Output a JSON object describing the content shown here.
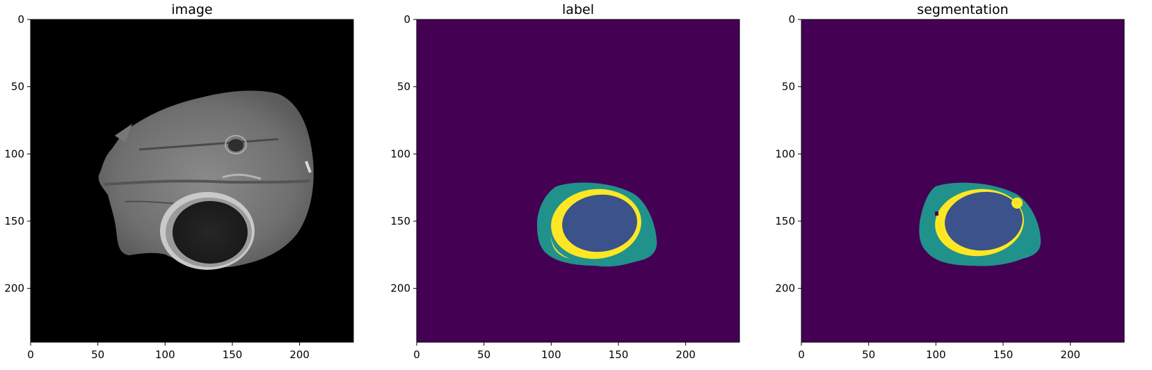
{
  "chart_data": [
    {
      "type": "heatmap",
      "title": "image",
      "xlim": [
        0,
        240
      ],
      "ylim": [
        240,
        0
      ],
      "xticks": [
        0,
        50,
        100,
        150,
        200
      ],
      "yticks": [
        0,
        50,
        100,
        150,
        200
      ],
      "colormap": "gray",
      "content": "axial brain MRI slice with ring-enhancing lesion"
    },
    {
      "type": "heatmap",
      "title": "label",
      "xlim": [
        0,
        240
      ],
      "ylim": [
        240,
        0
      ],
      "xticks": [
        0,
        50,
        100,
        150,
        200
      ],
      "yticks": [
        0,
        50,
        100,
        150,
        200
      ],
      "colormap": "viridis",
      "regions": [
        {
          "class": "background",
          "color": "#440154"
        },
        {
          "class": "outer",
          "color": "#21918c",
          "center": [
            138,
            154
          ],
          "radius": [
            43,
            31
          ]
        },
        {
          "class": "ring",
          "color": "#fde725",
          "center": [
            135,
            152
          ],
          "radius": [
            34,
            25
          ]
        },
        {
          "class": "core",
          "color": "#3b528b",
          "center": [
            134,
            151
          ],
          "radius": [
            27,
            20
          ]
        }
      ]
    },
    {
      "type": "heatmap",
      "title": "segmentation",
      "xlim": [
        0,
        240
      ],
      "ylim": [
        240,
        0
      ],
      "xticks": [
        0,
        50,
        100,
        150,
        200
      ],
      "yticks": [
        0,
        50,
        100,
        150,
        200
      ],
      "colormap": "viridis",
      "regions": [
        {
          "class": "background",
          "color": "#440154"
        },
        {
          "class": "outer",
          "color": "#21918c",
          "center": [
            138,
            152
          ],
          "radius": [
            43,
            29
          ]
        },
        {
          "class": "ring",
          "color": "#fde725",
          "center": [
            134,
            151
          ],
          "radius": [
            33,
            24
          ]
        },
        {
          "class": "core",
          "color": "#3b528b",
          "center": [
            134,
            150
          ],
          "radius": [
            28,
            21
          ]
        }
      ]
    }
  ]
}
